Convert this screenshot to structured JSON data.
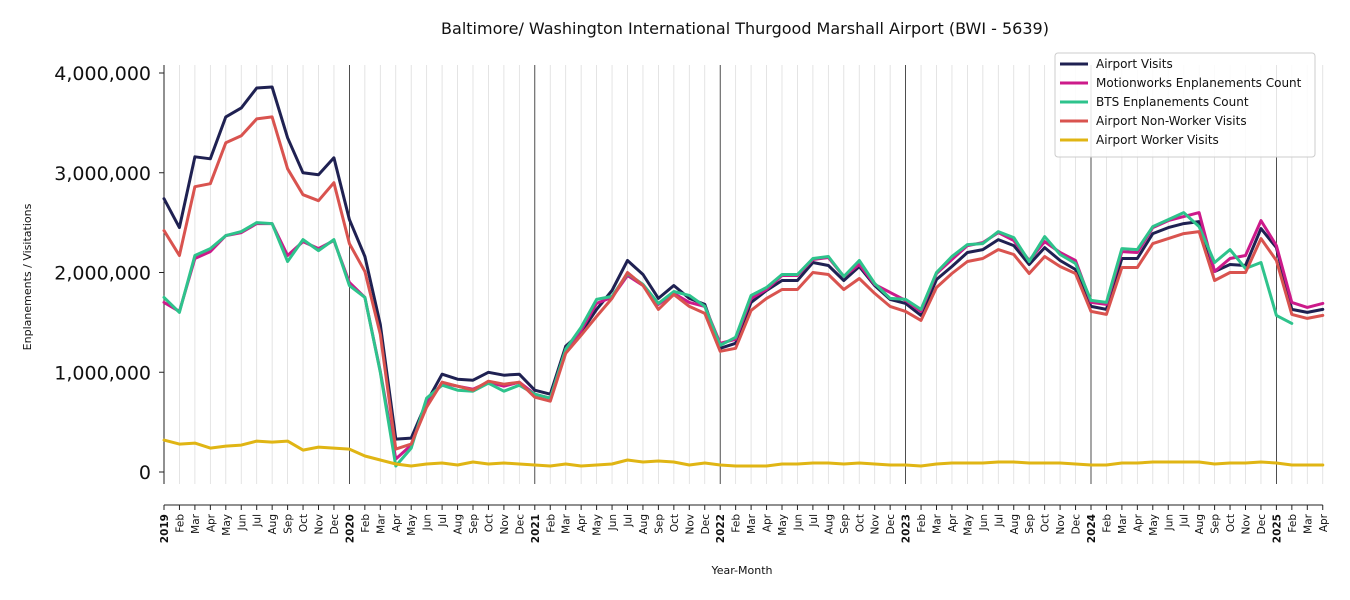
{
  "chart_data": {
    "type": "line",
    "title": "Baltimore/ Washington International Thurgood Marshall Airport (BWI - 5639)",
    "xlabel": "Year-Month",
    "ylabel": "Enplanements / Visitations",
    "ylim": [
      -120000,
      4080000
    ],
    "yticks": [
      {
        "value": 0,
        "label": "0"
      },
      {
        "value": 1000000,
        "label": "1,000,000"
      },
      {
        "value": 2000000,
        "label": "2,000,000"
      },
      {
        "value": 3000000,
        "label": "3,000,000"
      },
      {
        "value": 4000000,
        "label": "4,000,000"
      }
    ],
    "legend_position": "top-right",
    "grid": "vertical monthly lines, darker at year boundaries",
    "x": [
      "2019",
      "Feb",
      "Mar",
      "Apr",
      "May",
      "Jun",
      "Jul",
      "Aug",
      "Sep",
      "Oct",
      "Nov",
      "Dec",
      "2020",
      "Feb",
      "Mar",
      "Apr",
      "May",
      "Jun",
      "Jul",
      "Aug",
      "Sep",
      "Oct",
      "Nov",
      "Dec",
      "2021",
      "Feb",
      "Mar",
      "Apr",
      "May",
      "Jun",
      "Jul",
      "Aug",
      "Sep",
      "Oct",
      "Nov",
      "Dec",
      "2022",
      "Feb",
      "Mar",
      "Apr",
      "May",
      "Jun",
      "Jul",
      "Aug",
      "Sep",
      "Oct",
      "Nov",
      "Dec",
      "2023",
      "Feb",
      "Mar",
      "Apr",
      "May",
      "Jun",
      "Jul",
      "Aug",
      "Sep",
      "Oct",
      "Nov",
      "Dec",
      "2024",
      "Feb",
      "Mar",
      "Apr",
      "May",
      "Jun",
      "Jul",
      "Aug",
      "Sep",
      "Oct",
      "Nov",
      "Dec",
      "2025",
      "Feb",
      "Mar",
      "Apr"
    ],
    "series": [
      {
        "name": "Airport Visits",
        "color": "#1f2152",
        "values": [
          2740000,
          2450000,
          3160000,
          3140000,
          3560000,
          3650000,
          3850000,
          3860000,
          3350000,
          3000000,
          2980000,
          3150000,
          2530000,
          2160000,
          1480000,
          330000,
          340000,
          700000,
          980000,
          930000,
          920000,
          1000000,
          970000,
          980000,
          820000,
          780000,
          1260000,
          1400000,
          1630000,
          1820000,
          2120000,
          1980000,
          1740000,
          1870000,
          1740000,
          1680000,
          1240000,
          1290000,
          1700000,
          1820000,
          1920000,
          1920000,
          2100000,
          2070000,
          1920000,
          2060000,
          1870000,
          1730000,
          1690000,
          1570000,
          1930000,
          2060000,
          2200000,
          2230000,
          2330000,
          2270000,
          2080000,
          2250000,
          2120000,
          2030000,
          1660000,
          1630000,
          2140000,
          2140000,
          2390000,
          2450000,
          2490000,
          2510000,
          2010000,
          2080000,
          2070000,
          2440000,
          2250000,
          1630000,
          1600000,
          1630000
        ]
      },
      {
        "name": "Motionworks Enplanements Count",
        "color": "#cc1a8a",
        "values": [
          1700000,
          1610000,
          2140000,
          2210000,
          2370000,
          2400000,
          2490000,
          2490000,
          2170000,
          2310000,
          2240000,
          2320000,
          1900000,
          1750000,
          1010000,
          130000,
          270000,
          690000,
          890000,
          860000,
          830000,
          900000,
          860000,
          900000,
          780000,
          740000,
          1220000,
          1420000,
          1690000,
          1750000,
          1970000,
          1870000,
          1680000,
          1790000,
          1700000,
          1660000,
          1290000,
          1330000,
          1740000,
          1830000,
          1970000,
          1970000,
          2130000,
          2150000,
          1960000,
          2080000,
          1880000,
          1800000,
          1720000,
          1610000,
          1990000,
          2130000,
          2270000,
          2300000,
          2400000,
          2320000,
          2120000,
          2310000,
          2200000,
          2120000,
          1700000,
          1680000,
          2210000,
          2200000,
          2450000,
          2520000,
          2560000,
          2600000,
          2010000,
          2140000,
          2170000,
          2520000,
          2270000,
          1700000,
          1650000,
          1690000
        ]
      },
      {
        "name": "BTS Enplanements Count",
        "color": "#2ec38c",
        "values": [
          1750000,
          1600000,
          2170000,
          2240000,
          2370000,
          2410000,
          2500000,
          2490000,
          2110000,
          2330000,
          2220000,
          2330000,
          1870000,
          1750000,
          1000000,
          60000,
          240000,
          740000,
          870000,
          820000,
          810000,
          890000,
          810000,
          870000,
          780000,
          740000,
          1230000,
          1450000,
          1730000,
          1760000,
          1990000,
          1880000,
          1690000,
          1810000,
          1770000,
          1660000,
          1270000,
          1350000,
          1770000,
          1850000,
          1980000,
          1980000,
          2140000,
          2160000,
          1960000,
          2120000,
          1890000,
          1740000,
          1730000,
          1630000,
          2000000,
          2160000,
          2280000,
          2290000,
          2410000,
          2350000,
          2110000,
          2360000,
          2180000,
          2090000,
          1720000,
          1700000,
          2240000,
          2230000,
          2460000,
          2530000,
          2600000,
          2460000,
          2100000,
          2230000,
          2040000,
          2100000,
          1570000,
          1490000,
          null,
          null
        ]
      },
      {
        "name": "Airport Non-Worker Visits",
        "color": "#d9534f",
        "values": [
          2420000,
          2170000,
          2860000,
          2890000,
          3300000,
          3370000,
          3540000,
          3560000,
          3040000,
          2780000,
          2720000,
          2900000,
          2290000,
          2010000,
          1380000,
          230000,
          280000,
          650000,
          900000,
          860000,
          820000,
          910000,
          880000,
          900000,
          750000,
          710000,
          1190000,
          1370000,
          1560000,
          1740000,
          2000000,
          1870000,
          1630000,
          1780000,
          1660000,
          1590000,
          1210000,
          1240000,
          1620000,
          1740000,
          1830000,
          1830000,
          2000000,
          1980000,
          1830000,
          1940000,
          1790000,
          1660000,
          1610000,
          1520000,
          1850000,
          1990000,
          2110000,
          2140000,
          2230000,
          2180000,
          1990000,
          2160000,
          2060000,
          1990000,
          1610000,
          1580000,
          2050000,
          2050000,
          2290000,
          2340000,
          2390000,
          2410000,
          1920000,
          2000000,
          2000000,
          2340000,
          2120000,
          1580000,
          1540000,
          1570000
        ]
      },
      {
        "name": "Airport Worker Visits",
        "color": "#e0b514",
        "values": [
          320000,
          280000,
          290000,
          240000,
          260000,
          270000,
          310000,
          300000,
          310000,
          220000,
          250000,
          240000,
          230000,
          160000,
          120000,
          80000,
          60000,
          80000,
          90000,
          70000,
          100000,
          80000,
          90000,
          80000,
          70000,
          60000,
          80000,
          60000,
          70000,
          80000,
          120000,
          100000,
          110000,
          100000,
          70000,
          90000,
          70000,
          60000,
          60000,
          60000,
          80000,
          80000,
          90000,
          90000,
          80000,
          90000,
          80000,
          70000,
          70000,
          60000,
          80000,
          90000,
          90000,
          90000,
          100000,
          100000,
          90000,
          90000,
          90000,
          80000,
          70000,
          70000,
          90000,
          90000,
          100000,
          100000,
          100000,
          100000,
          80000,
          90000,
          90000,
          100000,
          90000,
          70000,
          70000,
          70000
        ]
      }
    ]
  }
}
